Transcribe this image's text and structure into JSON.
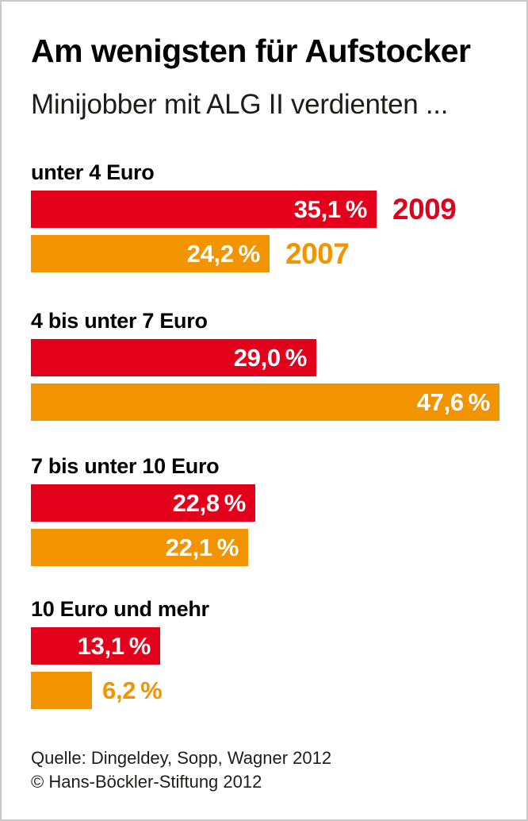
{
  "header": {
    "title": "Am wenigsten für Aufstocker",
    "subtitle": "Minijobber mit ALG II verdienten ..."
  },
  "chart_data": {
    "type": "bar",
    "orientation": "horizontal",
    "title": "Am wenigsten für Aufstocker",
    "subtitle": "Minijobber mit ALG II verdienten ...",
    "unit": "percent",
    "grid": false,
    "xlim": [
      0,
      47.6
    ],
    "legend_position": "right-of-first-group-bars",
    "categories": [
      "unter 4 Euro",
      "4 bis unter 7 Euro",
      "7 bis unter 10 Euro",
      "10 Euro und mehr"
    ],
    "series": [
      {
        "name": "2009",
        "color": "#e2001a",
        "values": [
          35.1,
          29.0,
          22.8,
          13.1
        ],
        "labels": [
          "35,1 %",
          "29,0 %",
          "22,8 %",
          "13,1 %"
        ]
      },
      {
        "name": "2007",
        "color": "#f29400",
        "values": [
          24.2,
          47.6,
          22.1,
          6.2
        ],
        "labels": [
          "24,2 %",
          "47,6 %",
          "22,1 %",
          "6,2 %"
        ]
      }
    ]
  },
  "footer": {
    "source": "Quelle: Dingeldey, Sopp, Wagner 2012",
    "copyright": "© Hans-Böckler-Stiftung 2012"
  }
}
